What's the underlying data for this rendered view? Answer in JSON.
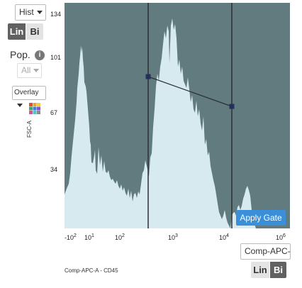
{
  "left_panel": {
    "plot_type": "Hist",
    "scale_lin": "Lin",
    "scale_bi": "Bi",
    "pop_label": "Pop.",
    "info_glyph": "i",
    "pop_select": "All",
    "overlay_select": "Overlay",
    "palette_icon": "palette-icon",
    "y_axis_label": "FSC-A"
  },
  "bottom_panel": {
    "x_param_field": "Comp-APC-",
    "scale_lin": "Lin",
    "scale_bi": "Bi",
    "x_axis_caption": "Comp-APC-A - CD45"
  },
  "plot": {
    "apply_gate_label": "Apply Gate",
    "y_ticks": [
      "134",
      "101",
      "67",
      "34"
    ],
    "x_ticks": [
      {
        "base": "-10",
        "exp": "2"
      },
      {
        "base": "10",
        "exp": "1"
      },
      {
        "base": "10",
        "exp": "2"
      },
      {
        "base": "10",
        "exp": "3"
      },
      {
        "base": "10",
        "exp": "4"
      },
      {
        "base": "10",
        "exp": "6"
      }
    ],
    "colors": {
      "background": "#627b7e",
      "histogram_fill": "#d6eaef",
      "gate_line": "#2c2f33",
      "gate_handle": "#23305c",
      "apply_button": "#3a8fd8"
    }
  }
}
